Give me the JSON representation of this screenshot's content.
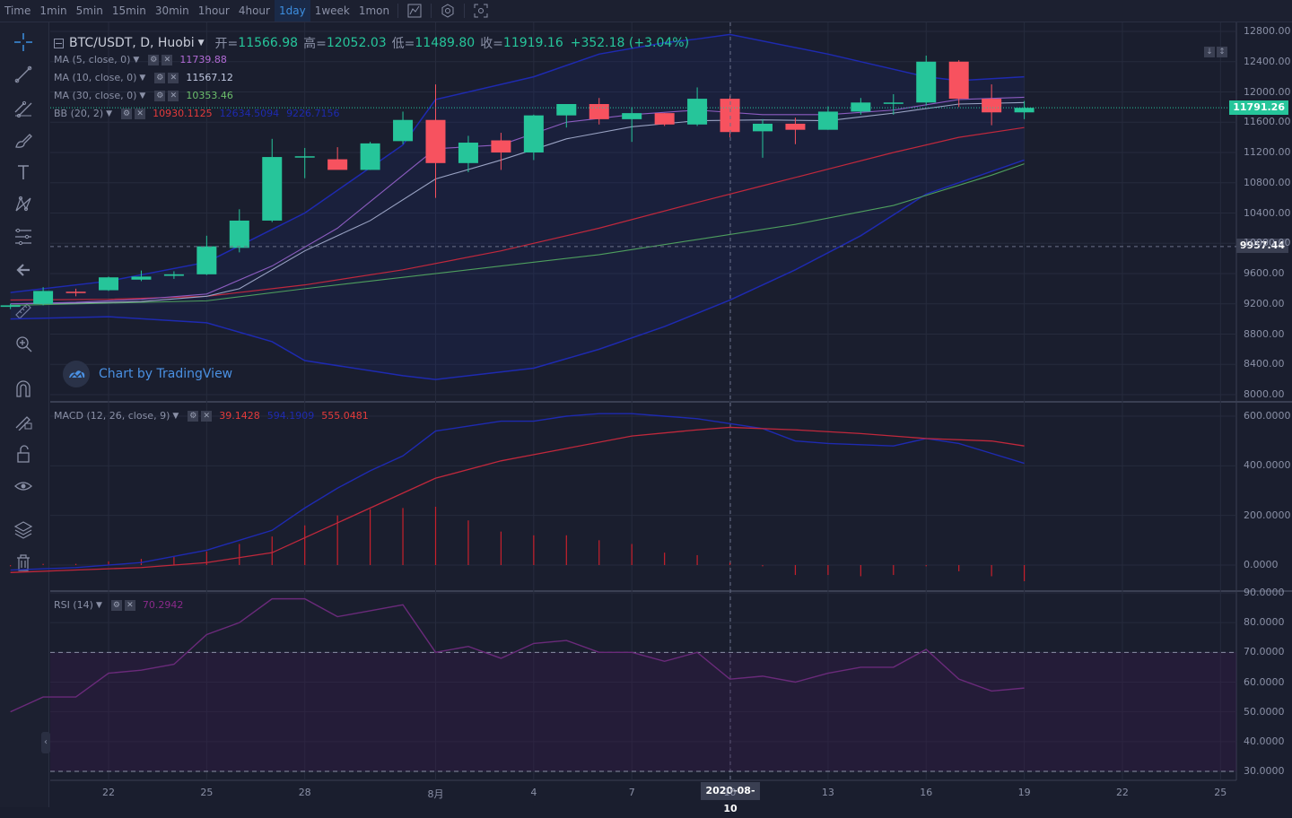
{
  "timeframes": [
    {
      "label": "Time",
      "active": false
    },
    {
      "label": "1min",
      "active": false
    },
    {
      "label": "5min",
      "active": false
    },
    {
      "label": "15min",
      "active": false
    },
    {
      "label": "30min",
      "active": false
    },
    {
      "label": "1hour",
      "active": false
    },
    {
      "label": "4hour",
      "active": false
    },
    {
      "label": "1day",
      "active": true
    },
    {
      "label": "1week",
      "active": false
    },
    {
      "label": "1mon",
      "active": false
    }
  ],
  "topbar_icons": [
    "chart-type-icon",
    "settings-icon",
    "screenshot-icon"
  ],
  "tools": [
    "crosshair-icon",
    "trend-line-icon",
    "fib-tool-icon",
    "brush-icon",
    "text-icon",
    "pattern-icon",
    "gann-icon",
    "back-arrow-icon",
    "ruler-icon",
    "zoom-icon",
    "magnet-icon",
    "lock-draw-icon",
    "unlock-icon",
    "eye-icon",
    "layers-icon",
    "trash-icon"
  ],
  "symbol": {
    "pair": "BTC/USDT, D, Huobi",
    "open_label": "开=",
    "open": "11566.98",
    "high_label": "高=",
    "high": "12052.03",
    "low_label": "低=",
    "low": "11489.80",
    "close_label": "收=",
    "close": "11919.16",
    "change": "+352.18 (+3.04%)"
  },
  "indicators": {
    "ma5": {
      "name": "MA (5, close, 0)",
      "value": "11739.88",
      "color": "#b26bd6"
    },
    "ma10": {
      "name": "MA (10, close, 0)",
      "value": "11567.12",
      "color": "#c0c8e0"
    },
    "ma30": {
      "name": "MA (30, close, 0)",
      "value": "10353.46",
      "color": "#6cbf6c"
    },
    "bb": {
      "name": "BB (20, 2)",
      "v1": "10930.1125",
      "v2": "12634.5094",
      "v3": "9226.7156",
      "c1": "#e53b3b",
      "c2": "#1e2ab0",
      "c3": "#1e2ab0"
    },
    "macd": {
      "name": "MACD (12, 26, close, 9)",
      "v1": "39.1428",
      "v2": "594.1909",
      "v3": "555.0481",
      "c1": "#e53b3b",
      "c2": "#1e2ab0",
      "c3": "#e53b3b"
    },
    "rsi": {
      "name": "RSI (14)",
      "value": "70.2942",
      "color": "#8a2a8a"
    }
  },
  "price_pill": "11791.26",
  "crosshair_pill": "9957.44",
  "watermark": "Chart by TradingView",
  "crosshair_date": "2020-08-10",
  "x_labels": [
    {
      "label": "22",
      "day": 22
    },
    {
      "label": "25",
      "day": 25
    },
    {
      "label": "28",
      "day": 28
    },
    {
      "label": "8月",
      "day": 32
    },
    {
      "label": "4",
      "day": 35
    },
    {
      "label": "7",
      "day": 38
    },
    {
      "label": "10",
      "day": 41
    },
    {
      "label": "13",
      "day": 44
    },
    {
      "label": "16",
      "day": 47
    },
    {
      "label": "19",
      "day": 50
    },
    {
      "label": "22",
      "day": 53
    },
    {
      "label": "25",
      "day": 56
    }
  ],
  "price_axis": [
    "12800.00",
    "12400.00",
    "12000.00",
    "11600.00",
    "11200.00",
    "10800.00",
    "10400.00",
    "10000.00",
    "9600.00",
    "9200.00",
    "8800.00",
    "8400.00",
    "8000.00"
  ],
  "macd_axis": [
    "600.0000",
    "400.0000",
    "200.0000",
    "0.0000"
  ],
  "rsi_axis": [
    "90.0000",
    "80.0000",
    "70.0000",
    "60.0000",
    "50.0000",
    "40.0000",
    "30.0000"
  ],
  "chart_data": {
    "type": "candlestick",
    "x_unit": "day index (19 = Jul 19, 2020; 32 = Aug 1)",
    "ylim": [
      7950,
      12850
    ],
    "candles": [
      {
        "d": 19,
        "o": 9160,
        "h": 9200,
        "l": 9130,
        "c": 9180
      },
      {
        "d": 20,
        "o": 9200,
        "h": 9420,
        "l": 9180,
        "c": 9370
      },
      {
        "d": 21,
        "o": 9360,
        "h": 9400,
        "l": 9300,
        "c": 9350
      },
      {
        "d": 22,
        "o": 9380,
        "h": 9560,
        "l": 9370,
        "c": 9550
      },
      {
        "d": 23,
        "o": 9520,
        "h": 9640,
        "l": 9500,
        "c": 9560
      },
      {
        "d": 24,
        "o": 9570,
        "h": 9630,
        "l": 9530,
        "c": 9590
      },
      {
        "d": 25,
        "o": 9590,
        "h": 10100,
        "l": 9580,
        "c": 9960
      },
      {
        "d": 26,
        "o": 9940,
        "h": 10450,
        "l": 9880,
        "c": 10300
      },
      {
        "d": 27,
        "o": 10300,
        "h": 11380,
        "l": 10280,
        "c": 11140
      },
      {
        "d": 28,
        "o": 11140,
        "h": 11260,
        "l": 10860,
        "c": 11150
      },
      {
        "d": 29,
        "o": 11110,
        "h": 11270,
        "l": 10980,
        "c": 10970
      },
      {
        "d": 30,
        "o": 10970,
        "h": 11340,
        "l": 10970,
        "c": 11320
      },
      {
        "d": 31,
        "o": 11350,
        "h": 11740,
        "l": 11310,
        "c": 11630
      },
      {
        "d": 32,
        "o": 11630,
        "h": 12100,
        "l": 10600,
        "c": 11060
      },
      {
        "d": 33,
        "o": 11060,
        "h": 11420,
        "l": 10940,
        "c": 11330
      },
      {
        "d": 34,
        "o": 11360,
        "h": 11460,
        "l": 10970,
        "c": 11200
      },
      {
        "d": 35,
        "o": 11200,
        "h": 11700,
        "l": 11100,
        "c": 11690
      },
      {
        "d": 36,
        "o": 11690,
        "h": 11820,
        "l": 11530,
        "c": 11840
      },
      {
        "d": 37,
        "o": 11840,
        "h": 11920,
        "l": 11570,
        "c": 11640
      },
      {
        "d": 38,
        "o": 11640,
        "h": 11800,
        "l": 11340,
        "c": 11720
      },
      {
        "d": 39,
        "o": 11720,
        "h": 11720,
        "l": 11550,
        "c": 11570
      },
      {
        "d": 40,
        "o": 11570,
        "h": 12060,
        "l": 11550,
        "c": 11910
      },
      {
        "d": 41,
        "o": 11910,
        "h": 11950,
        "l": 11400,
        "c": 11470
      },
      {
        "d": 42,
        "o": 11480,
        "h": 11640,
        "l": 11130,
        "c": 11580
      },
      {
        "d": 43,
        "o": 11580,
        "h": 11660,
        "l": 11310,
        "c": 11500
      },
      {
        "d": 44,
        "o": 11500,
        "h": 11810,
        "l": 11500,
        "c": 11740
      },
      {
        "d": 45,
        "o": 11740,
        "h": 11920,
        "l": 11700,
        "c": 11860
      },
      {
        "d": 46,
        "o": 11850,
        "h": 11970,
        "l": 11700,
        "c": 11860
      },
      {
        "d": 47,
        "o": 11860,
        "h": 12480,
        "l": 11820,
        "c": 12400
      },
      {
        "d": 48,
        "o": 12400,
        "h": 12420,
        "l": 11800,
        "c": 11910
      },
      {
        "d": 49,
        "o": 11910,
        "h": 12100,
        "l": 11560,
        "c": 11730
      },
      {
        "d": 50,
        "o": 11730,
        "h": 11880,
        "l": 11640,
        "c": 11790
      }
    ],
    "ma5": [
      [
        19,
        9200
      ],
      [
        21,
        9220
      ],
      [
        23,
        9260
      ],
      [
        25,
        9330
      ],
      [
        27,
        9700
      ],
      [
        29,
        10200
      ],
      [
        31,
        10900
      ],
      [
        32,
        11250
      ],
      [
        34,
        11300
      ],
      [
        36,
        11600
      ],
      [
        38,
        11700
      ],
      [
        40,
        11760
      ],
      [
        42,
        11700
      ],
      [
        44,
        11700
      ],
      [
        46,
        11760
      ],
      [
        48,
        11900
      ],
      [
        50,
        11930
      ]
    ],
    "ma10": [
      [
        19,
        9200
      ],
      [
        21,
        9210
      ],
      [
        23,
        9230
      ],
      [
        25,
        9300
      ],
      [
        26,
        9400
      ],
      [
        28,
        9900
      ],
      [
        30,
        10300
      ],
      [
        32,
        10850
      ],
      [
        34,
        11100
      ],
      [
        36,
        11380
      ],
      [
        38,
        11540
      ],
      [
        40,
        11620
      ],
      [
        42,
        11630
      ],
      [
        44,
        11620
      ],
      [
        46,
        11720
      ],
      [
        48,
        11840
      ],
      [
        50,
        11860
      ]
    ],
    "ma30": [
      [
        19,
        9180
      ],
      [
        22,
        9210
      ],
      [
        25,
        9240
      ],
      [
        28,
        9400
      ],
      [
        31,
        9550
      ],
      [
        34,
        9700
      ],
      [
        37,
        9850
      ],
      [
        40,
        10050
      ],
      [
        43,
        10250
      ],
      [
        46,
        10500
      ],
      [
        49,
        10900
      ],
      [
        50,
        11050
      ]
    ],
    "bb_mid": [
      [
        19,
        9250
      ],
      [
        22,
        9260
      ],
      [
        25,
        9300
      ],
      [
        28,
        9450
      ],
      [
        31,
        9650
      ],
      [
        34,
        9900
      ],
      [
        37,
        10200
      ],
      [
        40,
        10540
      ],
      [
        42,
        10760
      ],
      [
        44,
        10980
      ],
      [
        46,
        11200
      ],
      [
        48,
        11400
      ],
      [
        50,
        11530
      ]
    ],
    "bb_up": [
      [
        19,
        9350
      ],
      [
        22,
        9500
      ],
      [
        25,
        9750
      ],
      [
        28,
        10400
      ],
      [
        31,
        11300
      ],
      [
        32,
        11900
      ],
      [
        35,
        12200
      ],
      [
        37,
        12500
      ],
      [
        39,
        12650
      ],
      [
        40,
        12700
      ],
      [
        41,
        12760
      ],
      [
        44,
        12500
      ],
      [
        47,
        12200
      ],
      [
        48,
        12150
      ],
      [
        50,
        12200
      ]
    ],
    "bb_low": [
      [
        19,
        9000
      ],
      [
        22,
        9030
      ],
      [
        25,
        8950
      ],
      [
        27,
        8700
      ],
      [
        28,
        8450
      ],
      [
        31,
        8250
      ],
      [
        32,
        8200
      ],
      [
        35,
        8350
      ],
      [
        37,
        8600
      ],
      [
        39,
        8900
      ],
      [
        41,
        9250
      ],
      [
        43,
        9650
      ],
      [
        45,
        10100
      ],
      [
        47,
        10650
      ],
      [
        49,
        10950
      ],
      [
        50,
        11100
      ]
    ],
    "macd_ylim": [
      -60,
      620
    ],
    "macd_line": [
      [
        19,
        -20
      ],
      [
        21,
        -10
      ],
      [
        23,
        10
      ],
      [
        25,
        60
      ],
      [
        27,
        140
      ],
      [
        28,
        230
      ],
      [
        29,
        310
      ],
      [
        30,
        380
      ],
      [
        31,
        440
      ],
      [
        32,
        540
      ],
      [
        33,
        560
      ],
      [
        34,
        580
      ],
      [
        35,
        580
      ],
      [
        36,
        600
      ],
      [
        37,
        610
      ],
      [
        38,
        610
      ],
      [
        39,
        600
      ],
      [
        40,
        590
      ],
      [
        41,
        570
      ],
      [
        42,
        550
      ],
      [
        43,
        500
      ],
      [
        44,
        490
      ],
      [
        46,
        480
      ],
      [
        47,
        510
      ],
      [
        48,
        490
      ],
      [
        49,
        450
      ],
      [
        50,
        410
      ]
    ],
    "signal_line": [
      [
        19,
        -30
      ],
      [
        21,
        -20
      ],
      [
        23,
        -10
      ],
      [
        25,
        10
      ],
      [
        27,
        50
      ],
      [
        28,
        110
      ],
      [
        29,
        170
      ],
      [
        30,
        230
      ],
      [
        31,
        290
      ],
      [
        32,
        350
      ],
      [
        34,
        420
      ],
      [
        36,
        470
      ],
      [
        38,
        520
      ],
      [
        40,
        545
      ],
      [
        41,
        555
      ],
      [
        43,
        545
      ],
      [
        45,
        530
      ],
      [
        47,
        510
      ],
      [
        49,
        500
      ],
      [
        50,
        480
      ]
    ],
    "macd_hist": [
      [
        19,
        -5
      ],
      [
        20,
        5
      ],
      [
        21,
        5
      ],
      [
        22,
        15
      ],
      [
        23,
        25
      ],
      [
        24,
        35
      ],
      [
        25,
        55
      ],
      [
        26,
        85
      ],
      [
        27,
        115
      ],
      [
        28,
        160
      ],
      [
        29,
        200
      ],
      [
        30,
        225
      ],
      [
        31,
        230
      ],
      [
        32,
        235
      ],
      [
        33,
        180
      ],
      [
        34,
        135
      ],
      [
        35,
        120
      ],
      [
        36,
        120
      ],
      [
        37,
        100
      ],
      [
        38,
        85
      ],
      [
        39,
        50
      ],
      [
        40,
        40
      ],
      [
        41,
        10
      ],
      [
        42,
        -5
      ],
      [
        43,
        -40
      ],
      [
        44,
        -40
      ],
      [
        45,
        -45
      ],
      [
        46,
        -40
      ],
      [
        47,
        -5
      ],
      [
        48,
        -25
      ],
      [
        49,
        -45
      ],
      [
        50,
        -65
      ]
    ],
    "rsi_ylim": [
      28,
      92
    ],
    "rsi": [
      [
        19,
        50
      ],
      [
        20,
        55
      ],
      [
        21,
        55
      ],
      [
        22,
        63
      ],
      [
        23,
        64
      ],
      [
        24,
        66
      ],
      [
        25,
        76
      ],
      [
        26,
        80
      ],
      [
        27,
        88
      ],
      [
        28,
        88
      ],
      [
        29,
        82
      ],
      [
        30,
        84
      ],
      [
        31,
        86
      ],
      [
        32,
        70
      ],
      [
        33,
        72
      ],
      [
        34,
        68
      ],
      [
        35,
        73
      ],
      [
        36,
        74
      ],
      [
        37,
        70
      ],
      [
        38,
        70
      ],
      [
        39,
        67
      ],
      [
        40,
        70
      ],
      [
        41,
        61
      ],
      [
        42,
        62
      ],
      [
        43,
        60
      ],
      [
        44,
        63
      ],
      [
        45,
        65
      ],
      [
        46,
        65
      ],
      [
        47,
        71
      ],
      [
        48,
        61
      ],
      [
        49,
        57
      ],
      [
        50,
        58
      ]
    ],
    "rsi_bands": [
      70,
      30
    ]
  }
}
